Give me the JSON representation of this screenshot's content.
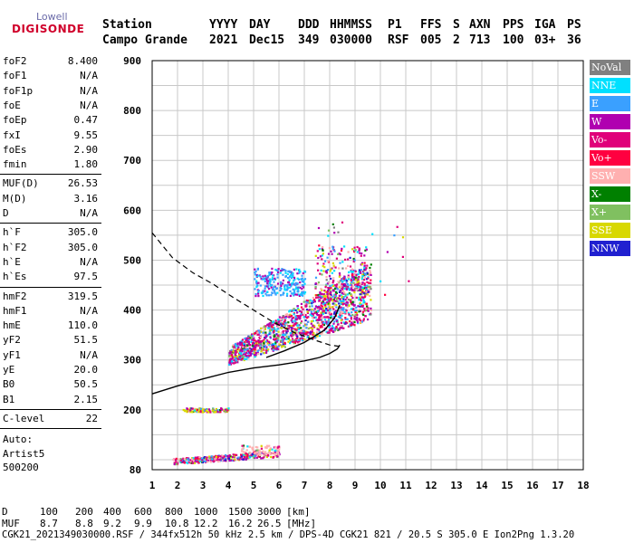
{
  "logo": {
    "line1": "Lowell",
    "line2": "DIGISONDE"
  },
  "header": {
    "row1": [
      "Station",
      "YYYY",
      "DAY",
      "DDD",
      "HHMMSS",
      "P1",
      "FFS",
      "S",
      "AXN",
      "PPS",
      "IGA",
      "PS"
    ],
    "row2": [
      "Campo Grande",
      "2021",
      "Dec15",
      "349",
      "030000",
      "RSF",
      "005",
      "2",
      "713",
      "100",
      "03+",
      "36"
    ]
  },
  "params": {
    "group1": [
      {
        "name": "foF2",
        "value": "8.400"
      },
      {
        "name": "foF1",
        "value": "N/A"
      },
      {
        "name": "foF1p",
        "value": "N/A"
      },
      {
        "name": "foE",
        "value": "N/A"
      },
      {
        "name": "foEp",
        "value": "0.47"
      },
      {
        "name": "fxI",
        "value": "9.55"
      },
      {
        "name": "foEs",
        "value": "2.90"
      },
      {
        "name": "fmin",
        "value": "1.80"
      }
    ],
    "group2": [
      {
        "name": "MUF(D)",
        "value": "26.53"
      },
      {
        "name": "M(D)",
        "value": "3.16"
      },
      {
        "name": "D",
        "value": "N/A"
      }
    ],
    "group3": [
      {
        "name": "h`F",
        "value": "305.0"
      },
      {
        "name": "h`F2",
        "value": "305.0"
      },
      {
        "name": "h`E",
        "value": "N/A"
      },
      {
        "name": "h`Es",
        "value": "97.5"
      }
    ],
    "group4": [
      {
        "name": "hmF2",
        "value": "319.5"
      },
      {
        "name": "hmF1",
        "value": "N/A"
      },
      {
        "name": "hmE",
        "value": "110.0"
      },
      {
        "name": "yF2",
        "value": "51.5"
      },
      {
        "name": "yF1",
        "value": "N/A"
      },
      {
        "name": "yE",
        "value": "20.0"
      },
      {
        "name": "B0",
        "value": "50.5"
      },
      {
        "name": "B1",
        "value": "2.15"
      }
    ],
    "group5": [
      {
        "name": "C-level",
        "value": "22"
      }
    ],
    "scaler": [
      "Auto:",
      "Artist5",
      "500200"
    ]
  },
  "legend": [
    {
      "label": "NoVal",
      "color": "#808080"
    },
    {
      "label": "NNE",
      "color": "#00e0ff"
    },
    {
      "label": "E",
      "color": "#3aa0ff"
    },
    {
      "label": "W",
      "color": "#b000b0"
    },
    {
      "label": "Vo-",
      "color": "#e0007a"
    },
    {
      "label": "Vo+",
      "color": "#ff0040"
    },
    {
      "label": "SSW",
      "color": "#ffb0b0"
    },
    {
      "label": "X-",
      "color": "#008000"
    },
    {
      "label": "X+",
      "color": "#80c060"
    },
    {
      "label": "SSE",
      "color": "#d8d800"
    },
    {
      "label": "NNW",
      "color": "#2020d0"
    }
  ],
  "chart_data": {
    "type": "scatter",
    "title": "",
    "xlabel": "",
    "ylabel": "",
    "xlim": [
      1,
      18
    ],
    "ylim": [
      80,
      900
    ],
    "x_ticks": [
      1,
      2,
      3,
      4,
      5,
      6,
      7,
      8,
      9,
      10,
      11,
      12,
      13,
      14,
      15,
      16,
      17,
      18
    ],
    "y_ticks": [
      80,
      200,
      300,
      400,
      500,
      600,
      700,
      800,
      900
    ],
    "grid": true,
    "traces": {
      "F_region_cloud": {
        "freq_range": [
          3.8,
          11.0
        ],
        "height_range": [
          290,
          580
        ]
      },
      "Es_trace_200": {
        "freq_range": [
          2.2,
          4.0
        ],
        "height": 200
      },
      "Es_trace_90": {
        "freq_range": [
          1.8,
          6.0
        ],
        "height_range": [
          90,
          115
        ]
      }
    },
    "profile_dashed": [
      [
        1,
        555
      ],
      [
        1.8,
        505
      ],
      [
        2.6,
        475
      ],
      [
        3.4,
        452
      ],
      [
        4.2,
        425
      ],
      [
        5.0,
        400
      ],
      [
        5.8,
        375
      ],
      [
        6.6,
        355
      ],
      [
        7.4,
        340
      ],
      [
        8.0,
        330
      ],
      [
        8.4,
        327
      ]
    ],
    "profile_solid": [
      [
        1,
        232
      ],
      [
        2,
        248
      ],
      [
        3,
        262
      ],
      [
        4,
        275
      ],
      [
        5,
        284
      ],
      [
        6,
        290
      ],
      [
        7,
        298
      ],
      [
        7.6,
        305
      ],
      [
        8.0,
        313
      ],
      [
        8.3,
        322
      ],
      [
        8.4,
        330
      ]
    ],
    "trace_solid": [
      [
        5.5,
        305
      ],
      [
        6.2,
        318
      ],
      [
        7.0,
        335
      ],
      [
        7.8,
        360
      ],
      [
        8.2,
        385
      ],
      [
        8.4,
        410
      ]
    ]
  },
  "bottom": {
    "d_label": "D",
    "d_values": [
      "100",
      "200",
      "400",
      "600",
      "800",
      "1000",
      "1500",
      "3000",
      "[km]"
    ],
    "muf_label": "MUF",
    "muf_values": [
      "8.7",
      "8.8",
      "9.2",
      "9.9",
      "10.8",
      "12.2",
      "16.2",
      "26.5",
      "[MHz]"
    ],
    "footer": "CGK21_2021349030000.RSF / 344fx512h 50 kHz 2.5 km / DPS-4D CGK21 821 / 20.5 S 305.0 E Ion2Png 1.3.20"
  }
}
